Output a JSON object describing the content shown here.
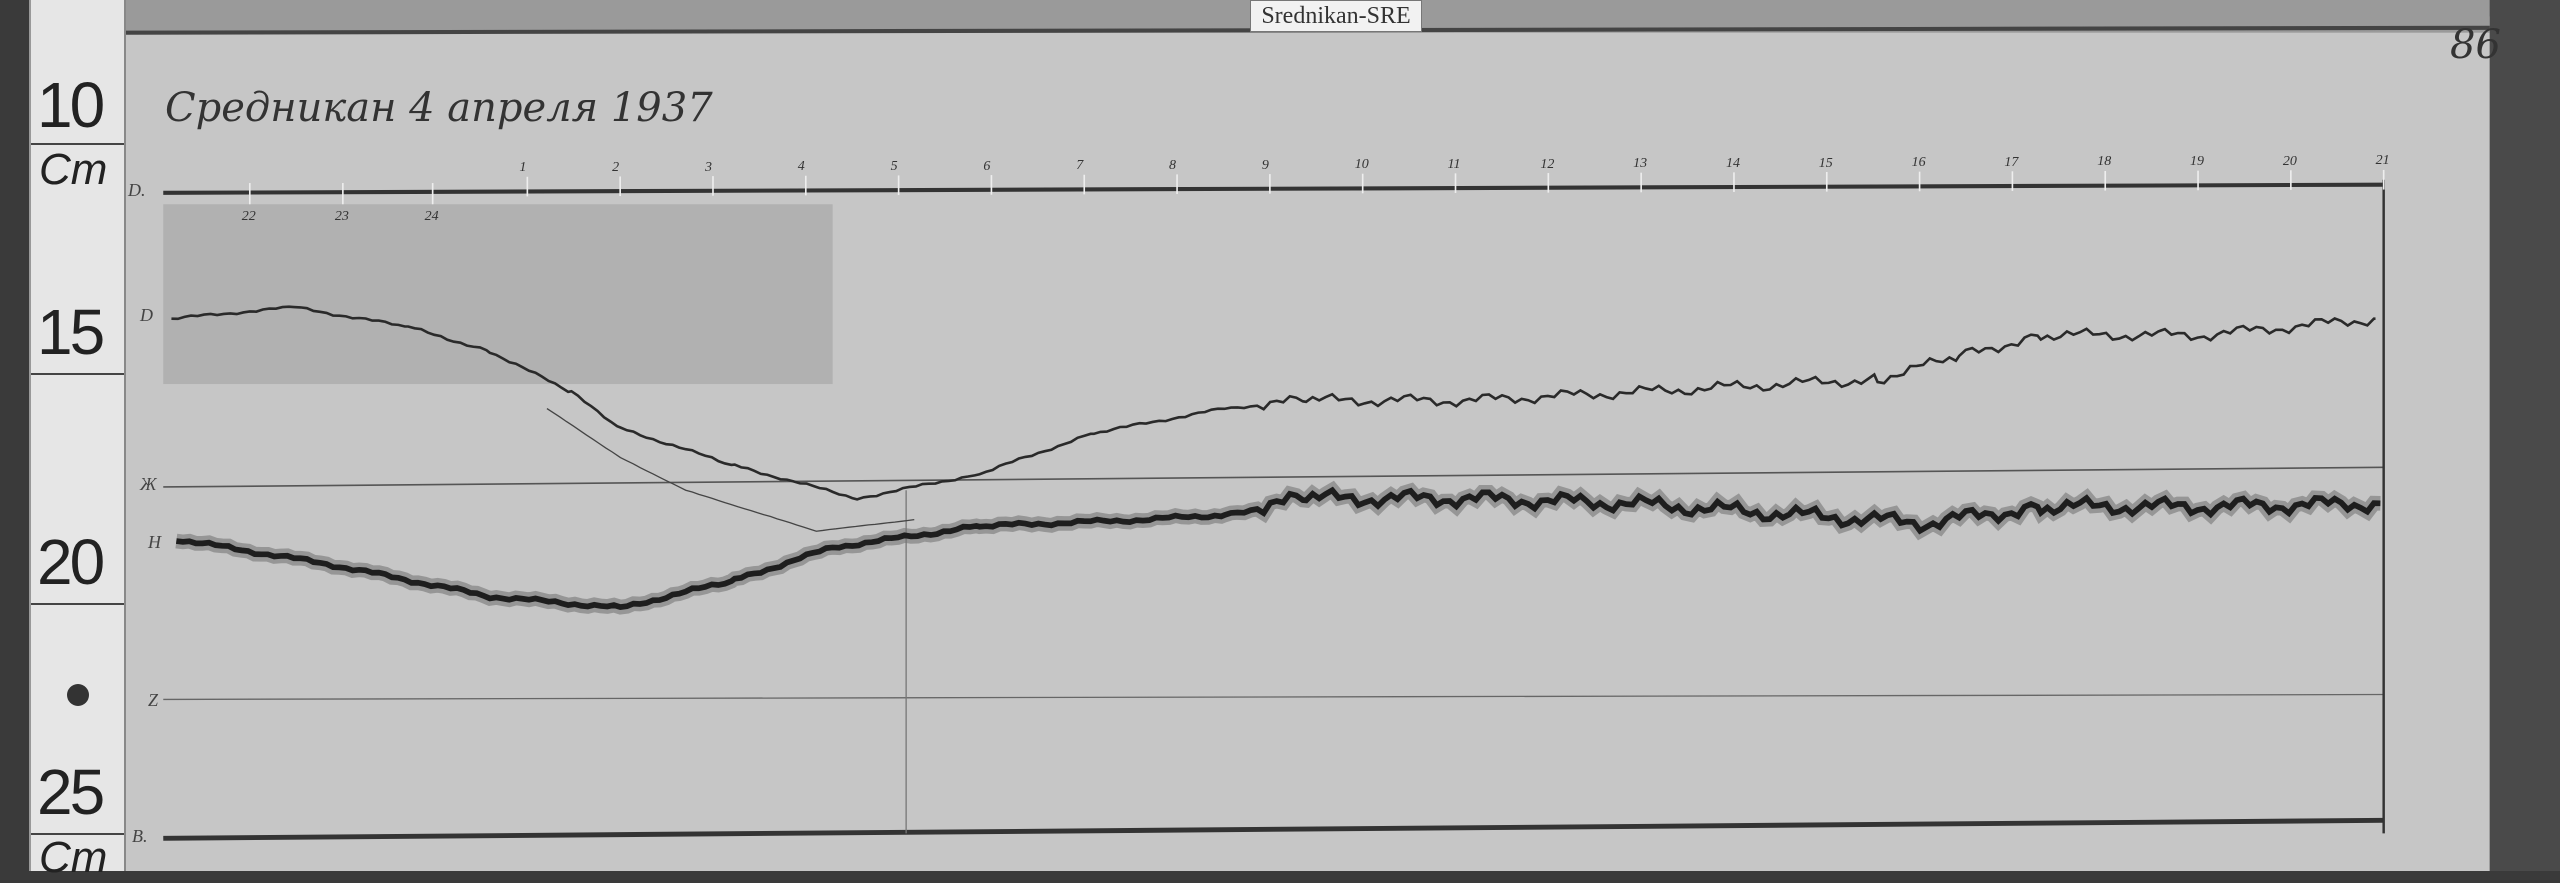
{
  "tag_label": "Srednikan-SRE",
  "handwritten_title": "Средникан 4 апреля 1937",
  "page_number": "86",
  "ruler": {
    "marks": [
      "10",
      "15",
      "20",
      "25"
    ],
    "unit": "Cm"
  },
  "trace_labels": [
    "D.",
    "D",
    "Ж",
    "H",
    "Z",
    "B."
  ],
  "hours_before": [
    "22",
    "23",
    "24"
  ],
  "hours": [
    "1",
    "2",
    "3",
    "4",
    "5",
    "6",
    "7",
    "8",
    "9",
    "10",
    "11",
    "12",
    "13",
    "14",
    "15",
    "16",
    "17",
    "18",
    "19",
    "20",
    "21"
  ],
  "colors": {
    "paper": "#c9c9c9",
    "ink": "#2a2a2a"
  }
}
